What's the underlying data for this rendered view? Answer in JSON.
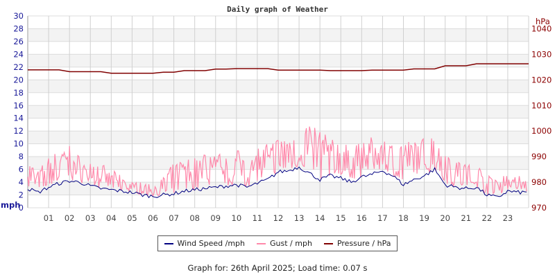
{
  "chart_data": {
    "type": "line",
    "title": "Daily graph of Weather",
    "left_axis": {
      "label": "mph",
      "range": [
        0,
        30
      ],
      "ticks": [
        "0",
        "2",
        "4",
        "6",
        "8",
        "10",
        "12",
        "14",
        "16",
        "18",
        "20",
        "22",
        "24",
        "26",
        "28",
        "30"
      ],
      "color": "#1a1a99"
    },
    "right_axis": {
      "label": "hPa",
      "range": [
        970,
        1045
      ],
      "ticks": [
        "970",
        "980",
        "990",
        "1000",
        "1010",
        "1020",
        "1030",
        "1040"
      ],
      "color": "#8b0000"
    },
    "x_axis": {
      "range": [
        0,
        24
      ],
      "ticks": [
        "01",
        "02",
        "03",
        "04",
        "05",
        "06",
        "07",
        "08",
        "09",
        "10",
        "11",
        "12",
        "13",
        "14",
        "15",
        "16",
        "17",
        "18",
        "19",
        "20",
        "21",
        "22",
        "23"
      ]
    },
    "grid": true,
    "legend_placement": "bottom",
    "x_hours": [
      0,
      0.5,
      1,
      1.5,
      2,
      2.5,
      3,
      3.5,
      4,
      4.5,
      5,
      5.5,
      6,
      6.5,
      7,
      7.5,
      8,
      8.5,
      9,
      9.5,
      10,
      10.5,
      11,
      11.5,
      12,
      12.5,
      13,
      13.5,
      14,
      14.5,
      15,
      15.5,
      16,
      16.5,
      17,
      17.5,
      18,
      18.5,
      19,
      19.5,
      20,
      20.5,
      21,
      21.5,
      22,
      22.5,
      23,
      23.5
    ],
    "series": [
      {
        "name": "Wind Speed /mph",
        "axis": "left",
        "color": "#000080",
        "values": [
          3.0,
          2.4,
          3.2,
          3.8,
          4.2,
          4.0,
          3.4,
          3.0,
          2.8,
          2.6,
          2.4,
          2.0,
          1.8,
          2.0,
          2.2,
          2.6,
          2.8,
          3.0,
          3.2,
          3.4,
          3.6,
          3.2,
          3.8,
          4.4,
          5.6,
          5.8,
          6.4,
          5.4,
          4.4,
          5.0,
          4.6,
          4.0,
          4.8,
          5.2,
          5.8,
          5.0,
          3.6,
          4.4,
          5.0,
          6.0,
          3.6,
          3.2,
          3.0,
          3.2,
          2.0,
          1.6,
          2.6,
          2.4
        ]
      },
      {
        "name": "Gust / mph",
        "axis": "left",
        "color": "#ff88aa",
        "values": [
          8,
          6,
          8,
          9,
          10,
          8,
          7,
          7,
          6,
          5,
          4,
          4,
          3.5,
          5,
          7,
          8,
          8,
          9,
          9,
          8,
          9,
          9,
          10,
          10,
          11,
          11,
          12,
          13.8,
          12,
          11,
          10,
          10,
          11,
          11,
          11,
          10,
          10,
          11,
          11,
          11.5,
          9,
          8,
          7,
          7,
          5,
          5,
          6,
          5
        ]
      },
      {
        "name": "Pressure / hPa",
        "axis": "right",
        "color": "#800000",
        "values": [
          1023.9,
          1023.9,
          1023.9,
          1023.9,
          1023.2,
          1023.2,
          1023.2,
          1023.2,
          1022.6,
          1022.6,
          1022.6,
          1022.6,
          1022.6,
          1023.0,
          1023.0,
          1023.6,
          1023.6,
          1023.6,
          1024.2,
          1024.2,
          1024.4,
          1024.4,
          1024.4,
          1024.4,
          1023.8,
          1023.8,
          1023.8,
          1023.8,
          1023.8,
          1023.6,
          1023.6,
          1023.6,
          1023.6,
          1023.8,
          1023.8,
          1023.8,
          1023.8,
          1024.3,
          1024.3,
          1024.3,
          1025.5,
          1025.5,
          1025.5,
          1026.3,
          1026.3,
          1026.3,
          1026.3,
          1026.3
        ]
      }
    ]
  },
  "legend": {
    "wind": "Wind Speed /mph",
    "gust": "Gust / mph",
    "pressure": "Pressure / hPa"
  },
  "caption": "Graph for: 26th April 2025; Load time: 0.07 s"
}
